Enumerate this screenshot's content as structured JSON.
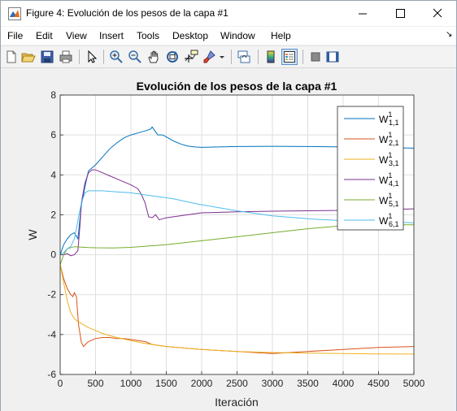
{
  "window": {
    "title": "Figure 4: Evolución de los pesos de la capa #1",
    "icon": "matlab-figure-icon"
  },
  "menu": {
    "items": [
      "File",
      "Edit",
      "View",
      "Insert",
      "Tools",
      "Desktop",
      "Window",
      "Help"
    ]
  },
  "toolbar": {
    "buttons": [
      "new-figure-icon",
      "open-file-icon",
      "save-icon",
      "print-icon",
      "edit-plot-arrow-icon",
      "zoom-in-icon",
      "zoom-out-icon",
      "pan-hand-icon",
      "rotate-3d-icon",
      "data-cursor-icon",
      "brush-icon",
      "link-plot-icon",
      "insert-colorbar-icon",
      "insert-legend-icon",
      "hide-plot-tools-icon",
      "show-plot-tools-icon"
    ]
  },
  "chart_data": {
    "type": "line",
    "title": "Evolución de los pesos de la capa #1",
    "xlabel": "Iteración",
    "ylabel": "W",
    "xlim": [
      0,
      5000
    ],
    "ylim": [
      -6,
      8
    ],
    "xticks": [
      0,
      500,
      1000,
      1500,
      2000,
      2500,
      3000,
      3500,
      4000,
      4500,
      5000
    ],
    "yticks": [
      -6,
      -4,
      -2,
      0,
      2,
      4,
      6,
      8
    ],
    "grid": true,
    "legend_position": "top-right",
    "series": [
      {
        "name": "W",
        "sub": "1,1",
        "sup": "1",
        "color": "#0072BD",
        "x": [
          0,
          50,
          100,
          150,
          200,
          250,
          300,
          350,
          400,
          500,
          600,
          700,
          800,
          900,
          1000,
          1100,
          1200,
          1280,
          1300,
          1340,
          1380,
          1450,
          1500,
          1600,
          1700,
          1800,
          1900,
          2000,
          2500,
          3000,
          3500,
          4000,
          4500,
          5000
        ],
        "y": [
          0,
          0.5,
          0.8,
          1.0,
          1.1,
          0.8,
          2.5,
          3.4,
          4.2,
          4.5,
          4.9,
          5.3,
          5.6,
          5.85,
          6.0,
          6.1,
          6.2,
          6.3,
          6.4,
          6.2,
          6.0,
          6.0,
          5.9,
          5.7,
          5.55,
          5.45,
          5.4,
          5.38,
          5.42,
          5.43,
          5.42,
          5.4,
          5.37,
          5.34
        ]
      },
      {
        "name": "W",
        "sub": "2,1",
        "sup": "1",
        "color": "#D95319",
        "x": [
          0,
          50,
          100,
          150,
          180,
          200,
          230,
          260,
          300,
          330,
          370,
          400,
          500,
          600,
          700,
          800,
          900,
          1000,
          1100,
          1200,
          1300,
          1400,
          1500,
          2000,
          2500,
          3000,
          3500,
          4000,
          4500,
          5000
        ],
        "y": [
          -0.5,
          -1.2,
          -1.7,
          -2.0,
          -2.1,
          -1.9,
          -2.1,
          -3.5,
          -4.4,
          -4.6,
          -4.45,
          -4.35,
          -4.2,
          -4.15,
          -4.15,
          -4.2,
          -4.2,
          -4.25,
          -4.3,
          -4.35,
          -4.5,
          -4.55,
          -4.6,
          -4.75,
          -4.85,
          -4.95,
          -4.85,
          -4.75,
          -4.65,
          -4.6
        ]
      },
      {
        "name": "W",
        "sub": "3,1",
        "sup": "1",
        "color": "#EDB120",
        "x": [
          0,
          50,
          100,
          150,
          200,
          250,
          300,
          350,
          400,
          500,
          600,
          700,
          800,
          1000,
          1200,
          1500,
          2000,
          2500,
          3000,
          3500,
          4000,
          4500,
          5000
        ],
        "y": [
          -0.5,
          -1.4,
          -2.3,
          -2.9,
          -3.2,
          -3.35,
          -3.45,
          -3.55,
          -3.65,
          -3.8,
          -3.95,
          -4.05,
          -4.15,
          -4.3,
          -4.45,
          -4.6,
          -4.75,
          -4.85,
          -4.9,
          -4.93,
          -4.95,
          -4.97,
          -4.98
        ]
      },
      {
        "name": "W",
        "sub": "4,1",
        "sup": "1",
        "color": "#7E2F8E",
        "x": [
          0,
          50,
          100,
          150,
          200,
          250,
          280,
          300,
          350,
          400,
          450,
          500,
          600,
          700,
          800,
          900,
          1000,
          1050,
          1100,
          1150,
          1200,
          1250,
          1300,
          1350,
          1400,
          1450,
          1500,
          2000,
          2500,
          3000,
          3500,
          4000,
          4500,
          5000
        ],
        "y": [
          0,
          0.0,
          0.05,
          -0.05,
          0.0,
          0.2,
          1.5,
          2.6,
          3.6,
          4.1,
          4.25,
          4.25,
          4.1,
          3.95,
          3.8,
          3.65,
          3.5,
          3.4,
          3.3,
          3.0,
          2.6,
          1.9,
          1.85,
          2.0,
          1.75,
          1.8,
          1.85,
          2.1,
          2.15,
          2.18,
          2.2,
          2.22,
          2.25,
          2.3
        ]
      },
      {
        "name": "W",
        "sub": "5,1",
        "sup": "1",
        "color": "#77AC30",
        "x": [
          0,
          50,
          100,
          200,
          300,
          400,
          500,
          750,
          1000,
          1500,
          2000,
          2500,
          3000,
          3500,
          4000,
          4500,
          5000
        ],
        "y": [
          -0.5,
          0.0,
          0.3,
          0.4,
          0.38,
          0.36,
          0.35,
          0.34,
          0.37,
          0.5,
          0.7,
          0.9,
          1.1,
          1.3,
          1.45,
          1.5,
          1.5
        ]
      },
      {
        "name": "W",
        "sub": "6,1",
        "sup": "1",
        "color": "#4DBEEE",
        "x": [
          0,
          50,
          100,
          150,
          200,
          230,
          260,
          300,
          350,
          400,
          450,
          500,
          600,
          800,
          1000,
          1200,
          1400,
          1600,
          1800,
          2000,
          2500,
          3000,
          3500,
          4000,
          4500,
          5000
        ],
        "y": [
          0,
          0.1,
          0.3,
          0.4,
          0.8,
          1.3,
          1.9,
          2.6,
          3.1,
          3.2,
          3.2,
          3.2,
          3.2,
          3.15,
          3.1,
          3.0,
          2.9,
          2.8,
          2.65,
          2.5,
          2.2,
          1.95,
          1.8,
          1.7,
          1.65,
          1.6
        ]
      }
    ]
  }
}
